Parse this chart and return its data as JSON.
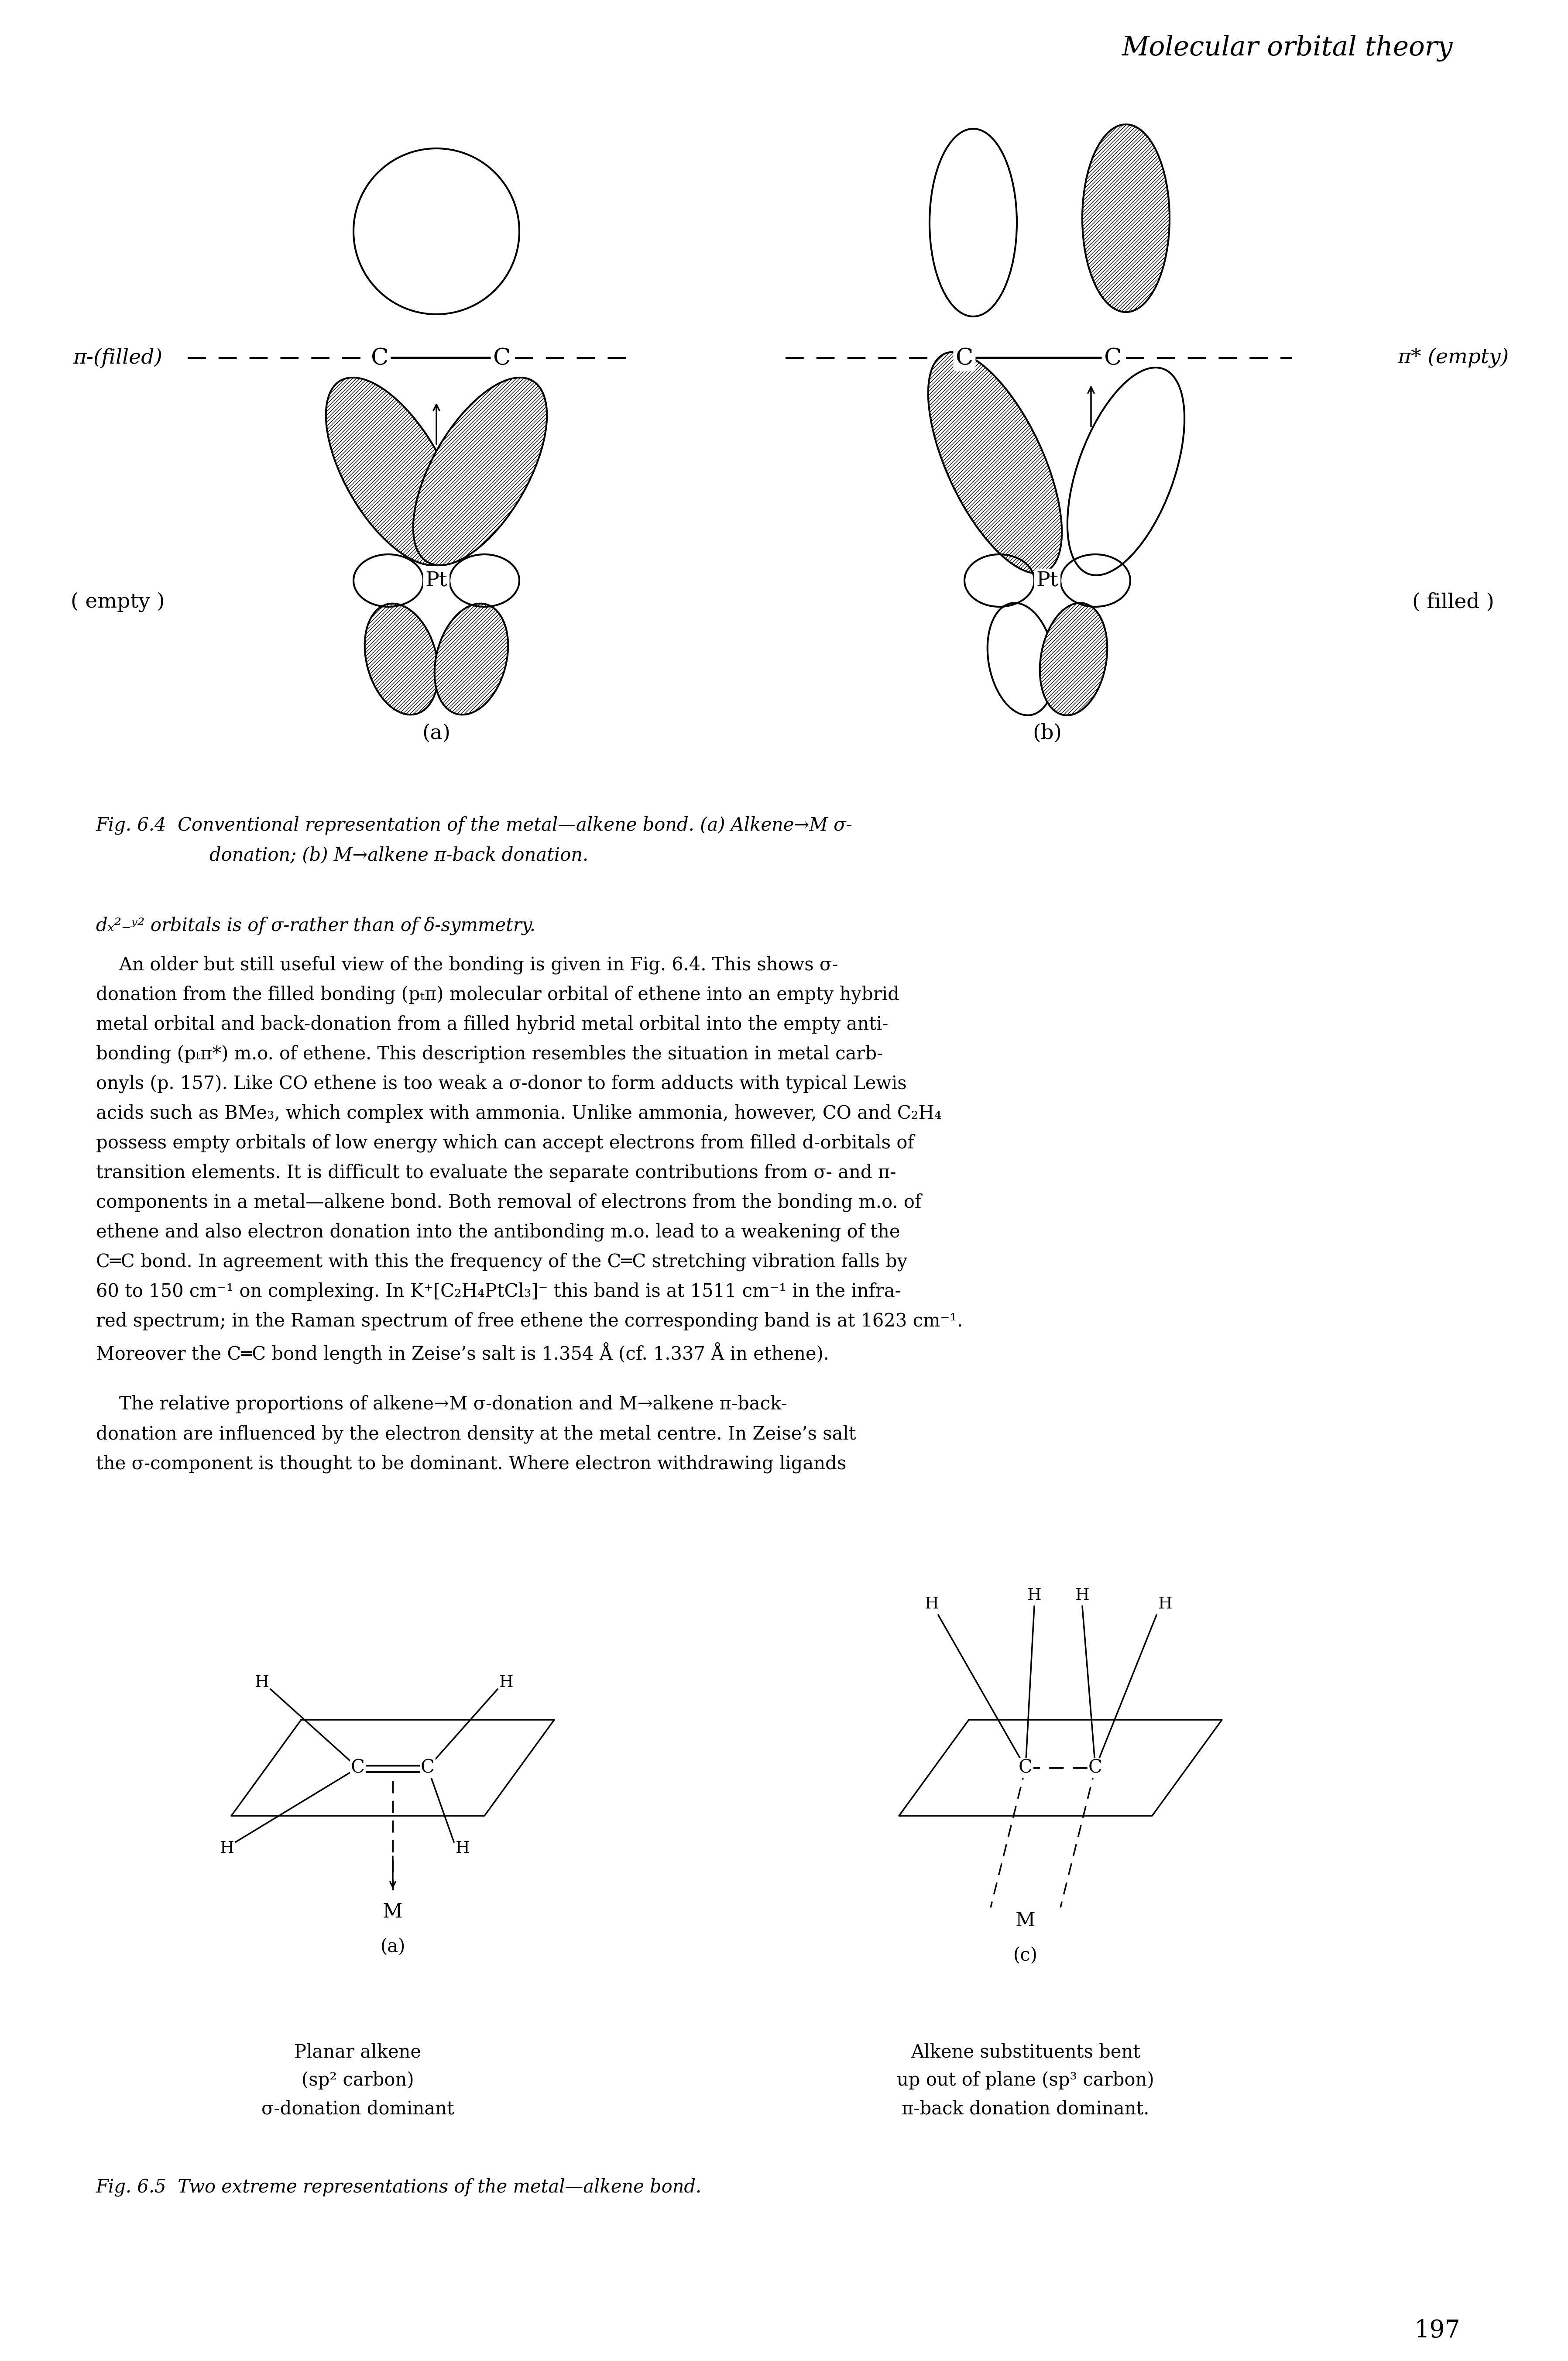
{
  "page_header": "Molecular orbital theory",
  "page_number": "197",
  "background_color": "#ffffff",
  "fig64_caption_line1": "Fig. 6.4  Conventional representation of the metal—alkene bond. (a) Alkene→M σ-",
  "fig64_caption_line2": "donation; (b) M→alkene π-back donation.",
  "label_pi_filled": "π-(filled)",
  "label_pi_star_empty": "π* (empty)",
  "label_empty": "( empty )",
  "label_filled": "( filled )",
  "subfig_a": "(a)",
  "subfig_b": "(b)",
  "subfig_a2": "(a)",
  "subfig_c": "(c)",
  "label_planar_alkene": "Planar alkene",
  "label_sp2": "(sp² carbon)",
  "label_sigma_dominant": "σ-donation dominant",
  "label_alkene_substituents": "Alkene substituents bent",
  "label_up_out_of_plane": "up out of plane (sp³ carbon)",
  "label_pi_back_dominant": "π-back donation dominant.",
  "fig65_caption": "Fig. 6.5  Two extreme representations of the metal—alkene bond.",
  "body_line0": "dₓ²₋ʸ² orbitals is of σ-rather than of δ-symmetry.",
  "para1": [
    "    An older but still useful view of the bonding is given in Fig. 6.4. This shows σ-",
    "donation from the filled bonding (pₜπ) molecular orbital of ethene into an empty hybrid",
    "metal orbital and back-donation from a filled hybrid metal orbital into the empty anti-",
    "bonding (pₜπ*) m.o. of ethene. This description resembles the situation in metal carb-",
    "onyls (p. 157). Like CO ethene is too weak a σ-donor to form adducts with typical Lewis",
    "acids such as BMe₃, which complex with ammonia. Unlike ammonia, however, CO and C₂H₄",
    "possess empty orbitals of low energy which can accept electrons from filled d-orbitals of",
    "transition elements. It is difficult to evaluate the separate contributions from σ- and π-",
    "components in a metal—alkene bond. Both removal of electrons from the bonding m.o. of",
    "ethene and also electron donation into the antibonding m.o. lead to a weakening of the",
    "C═C bond. In agreement with this the frequency of the C═C stretching vibration falls by",
    "60 to 150 cm⁻¹ on complexing. In K⁺[C₂H₄PtCl₃]⁻ this band is at 1511 cm⁻¹ in the infra-",
    "red spectrum; in the Raman spectrum of free ethene the corresponding band is at 1623 cm⁻¹.",
    "Moreover the C═C bond length in Zeise’s salt is 1.354 Å (cf. 1.337 Å in ethene)."
  ],
  "para2": [
    "    The relative proportions of alkene→M σ-donation and M→alkene π-back-",
    "donation are influenced by the electron density at the metal centre. In Zeise’s salt",
    "the σ-component is thought to be dominant. Where electron withdrawing ligands"
  ]
}
